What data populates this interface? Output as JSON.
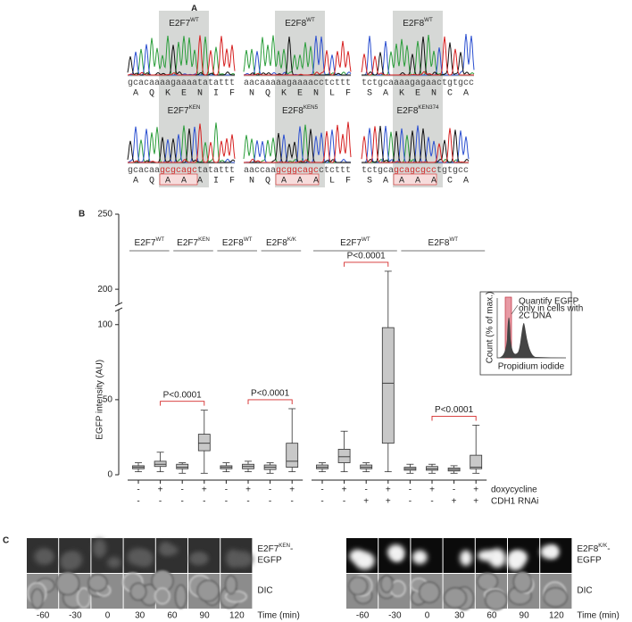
{
  "panel_a": {
    "label": "A",
    "rows": [
      {
        "mutant": false,
        "panels": [
          {
            "name": "E2F7",
            "sup": "WT",
            "seq": {
              "pre": "gcacaa",
              "mid": "aagaaaa",
              "post": "tatattt"
            },
            "aa": {
              "pre": [
                "A",
                "Q"
              ],
              "mid": [
                "K",
                "E",
                "N"
              ],
              "post": [
                "I",
                "F"
              ]
            }
          },
          {
            "name": "E2F8",
            "sup": "WT",
            "seq": {
              "pre": "aacaaa",
              "mid": "aagaaaac",
              "post": "ctcttt"
            },
            "aa": {
              "pre": [
                "N",
                "Q"
              ],
              "mid": [
                "K",
                "E",
                "N"
              ],
              "post": [
                "L",
                "F"
              ]
            }
          },
          {
            "name": "E2F8",
            "sup": "WT",
            "seq": {
              "pre": "tctgca",
              "mid": "aaagagaac",
              "post": "tgtgcc"
            },
            "aa": {
              "pre": [
                "S",
                "A"
              ],
              "mid": [
                "K",
                "E",
                "N"
              ],
              "post": [
                "C",
                "A"
              ]
            }
          }
        ]
      },
      {
        "mutant": true,
        "panels": [
          {
            "name": "E2F7",
            "sup": "KEN",
            "seq": {
              "pre": "gcacaa",
              "mid": "gcgcagc",
              "post": "tatattt"
            },
            "aa": {
              "pre": [
                "A",
                "Q"
              ],
              "mid": [
                "A",
                "A",
                "A"
              ],
              "post": [
                "I",
                "F"
              ]
            }
          },
          {
            "name": "E2F8",
            "sup": "KEN5",
            "seq": {
              "pre": "aaccaa",
              "mid": "gcggcagc",
              "post": "ctcttt"
            },
            "aa": {
              "pre": [
                "N",
                "Q"
              ],
              "mid": [
                "A",
                "A",
                "A"
              ],
              "post": [
                "L",
                "F"
              ]
            }
          },
          {
            "name": "E2F8",
            "sup": "KEN374",
            "seq": {
              "pre": "tctgca",
              "mid": "gcagcgcc",
              "post": "tgtgcc"
            },
            "aa": {
              "pre": [
                "S",
                "A"
              ],
              "mid": [
                "A",
                "A",
                "A"
              ],
              "post": [
                "C",
                "A"
              ]
            }
          }
        ]
      }
    ]
  },
  "chart_data": {
    "type": "box",
    "panel_label": "B",
    "y_label": "EGFP intensity (AU)",
    "ylim": [
      0,
      250
    ],
    "ybreak": [
      110,
      190
    ],
    "yticks": [
      0,
      50,
      100,
      200,
      250
    ],
    "color": "#c8c8c8",
    "annotation_color": "#d42a2a",
    "condition_labels": [
      "doxycycline",
      "CDH1 RNAi"
    ],
    "sets": [
      {
        "groups": [
          {
            "name": "E2F7",
            "sup": "WT",
            "boxes": [
              {
                "signs": [
                  "-",
                  "-"
                ],
                "min": 2,
                "q1": 4,
                "median": 5,
                "q3": 6,
                "max": 8
              },
              {
                "signs": [
                  "+",
                  "-"
                ],
                "min": 2,
                "q1": 5.5,
                "median": 7,
                "q3": 9,
                "max": 15
              }
            ]
          },
          {
            "name": "E2F7",
            "sup": "KEN",
            "boxes": [
              {
                "signs": [
                  "-",
                  "-"
                ],
                "min": 1,
                "q1": 4,
                "median": 5,
                "q3": 7,
                "max": 8
              },
              {
                "signs": [
                  "+",
                  "-"
                ],
                "min": 1,
                "q1": 16,
                "median": 21,
                "q3": 27,
                "max": 43,
                "pvalue": "P<0.0001"
              }
            ]
          },
          {
            "name": "E2F8",
            "sup": "WT",
            "boxes": [
              {
                "signs": [
                  "-",
                  "-"
                ],
                "min": 2,
                "q1": 4,
                "median": 5,
                "q3": 6,
                "max": 8
              },
              {
                "signs": [
                  "+",
                  "-"
                ],
                "min": 2,
                "q1": 4,
                "median": 5.5,
                "q3": 7,
                "max": 9
              }
            ]
          },
          {
            "name": "E2F8",
            "sup": "K/K",
            "boxes": [
              {
                "signs": [
                  "-",
                  "-"
                ],
                "min": 1,
                "q1": 3.5,
                "median": 5,
                "q3": 6.5,
                "max": 8
              },
              {
                "signs": [
                  "+",
                  "-"
                ],
                "min": 2,
                "q1": 5,
                "median": 9,
                "q3": 21,
                "max": 44,
                "pvalue": "P<0.0001"
              }
            ]
          }
        ]
      },
      {
        "groups": [
          {
            "name": "E2F7",
            "sup": "WT",
            "boxes": [
              {
                "signs": [
                  "-",
                  "-"
                ],
                "min": 2,
                "q1": 4,
                "median": 5,
                "q3": 6.5,
                "max": 8
              },
              {
                "signs": [
                  "+",
                  "-"
                ],
                "min": 2,
                "q1": 8,
                "median": 12,
                "q3": 17,
                "max": 29
              },
              {
                "signs": [
                  "-",
                  "+"
                ],
                "min": 2,
                "q1": 4,
                "median": 5,
                "q3": 6.5,
                "max": 8
              },
              {
                "signs": [
                  "+",
                  "+"
                ],
                "min": 2,
                "q1": 21,
                "median": 61,
                "q3": 98,
                "max": 212,
                "pvalue": "P<0.0001"
              }
            ]
          },
          {
            "name": "E2F8",
            "sup": "WT",
            "boxes": [
              {
                "signs": [
                  "-",
                  "-"
                ],
                "min": 1,
                "q1": 3,
                "median": 4,
                "q3": 5,
                "max": 7
              },
              {
                "signs": [
                  "+",
                  "-"
                ],
                "min": 1,
                "q1": 3,
                "median": 4,
                "q3": 5.5,
                "max": 7
              },
              {
                "signs": [
                  "-",
                  "+"
                ],
                "min": 1,
                "q1": 2.5,
                "median": 3.5,
                "q3": 4.5,
                "max": 6
              },
              {
                "signs": [
                  "+",
                  "+"
                ],
                "min": 1,
                "q1": 4,
                "median": 5,
                "q3": 13,
                "max": 33,
                "pvalue": "P<0.0001"
              }
            ]
          }
        ]
      }
    ],
    "inset": {
      "y_label": "Count (% of max.)",
      "x_label": "Propidium iodide",
      "note": [
        "Quantify EGFP",
        "only in cells with",
        "2C DNA"
      ]
    }
  },
  "panel_c": {
    "label": "C",
    "sides": [
      {
        "name": "E2F7",
        "sup": "KEN",
        "suffix": "-",
        "line2": "EGFP",
        "dic": "DIC",
        "bright": false
      },
      {
        "name": "E2F8",
        "sup": "K/K",
        "suffix": "-",
        "line2": "EGFP",
        "dic": "DIC",
        "bright": true
      }
    ],
    "times": [
      -60,
      -30,
      0,
      30,
      60,
      90,
      120
    ],
    "time_label": "Time (min)"
  }
}
